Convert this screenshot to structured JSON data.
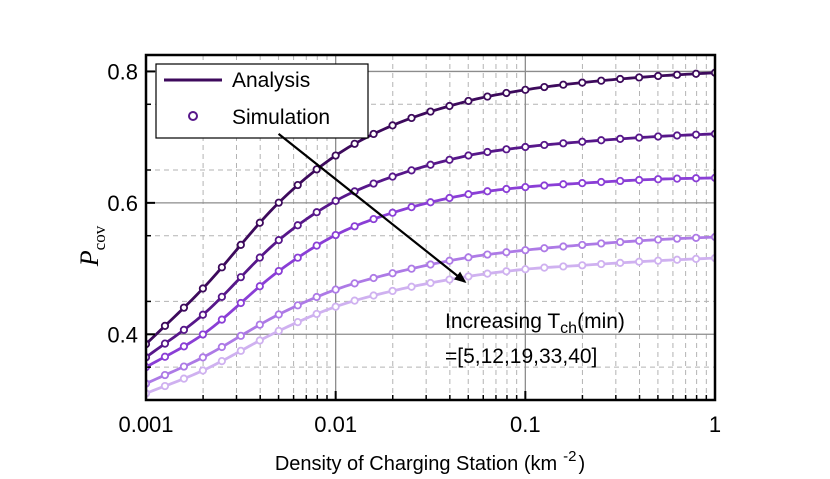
{
  "chart_data": {
    "type": "line",
    "x_scale": "log",
    "xlim": [
      0.001,
      1
    ],
    "ylim": [
      0.3,
      0.825
    ],
    "xlabel": "Density of Charging Station (km",
    "xlabel_sup": "-2",
    "xlabel_end": ")",
    "ylabel": "P",
    "ylabel_sub": "cov",
    "x_ticks": [
      {
        "value": 0.001,
        "label": "0.001"
      },
      {
        "value": 0.01,
        "label": "0.01"
      },
      {
        "value": 0.1,
        "label": "0.1"
      },
      {
        "value": 1,
        "label": "1"
      }
    ],
    "y_ticks": [
      {
        "value": 0.4,
        "label": "0.4"
      },
      {
        "value": 0.6,
        "label": "0.6"
      },
      {
        "value": 0.8,
        "label": "0.8"
      }
    ],
    "grid": true,
    "legend": {
      "placement": "top-left",
      "entries": [
        {
          "label": "Analysis",
          "marker": "line"
        },
        {
          "label": "Simulation",
          "marker": "open-circle"
        }
      ]
    },
    "annotation": {
      "line1": "Increasing T",
      "line1_sub": "ch",
      "line1_end": "(min)",
      "line2": "=[5,12,19,33,40]",
      "arrow_from": [
        0.005,
        0.705
      ],
      "arrow_to": [
        0.048,
        0.48
      ]
    },
    "series": [
      {
        "color": "#3d0a5c",
        "x": [
          0.001,
          0.002,
          0.005,
          0.01,
          0.02,
          0.05,
          0.1,
          0.2,
          0.5,
          1
        ],
        "y": [
          0.385,
          0.47,
          0.6,
          0.672,
          0.718,
          0.755,
          0.772,
          0.783,
          0.793,
          0.798
        ]
      },
      {
        "color": "#57178a",
        "x": [
          0.001,
          0.002,
          0.005,
          0.01,
          0.02,
          0.05,
          0.1,
          0.2,
          0.5,
          1
        ],
        "y": [
          0.365,
          0.43,
          0.543,
          0.603,
          0.64,
          0.672,
          0.685,
          0.693,
          0.701,
          0.705
        ]
      },
      {
        "color": "#8a3ed6",
        "x": [
          0.001,
          0.002,
          0.005,
          0.01,
          0.02,
          0.05,
          0.1,
          0.2,
          0.5,
          1
        ],
        "y": [
          0.35,
          0.4,
          0.496,
          0.551,
          0.585,
          0.613,
          0.624,
          0.63,
          0.636,
          0.638
        ]
      },
      {
        "color": "#ad7ae6",
        "x": [
          0.001,
          0.002,
          0.005,
          0.01,
          0.02,
          0.05,
          0.1,
          0.2,
          0.5,
          1
        ],
        "y": [
          0.325,
          0.365,
          0.43,
          0.468,
          0.493,
          0.517,
          0.528,
          0.536,
          0.544,
          0.548
        ]
      },
      {
        "color": "#cfb1f0",
        "x": [
          0.001,
          0.002,
          0.005,
          0.01,
          0.02,
          0.05,
          0.1,
          0.2,
          0.5,
          1
        ],
        "y": [
          0.31,
          0.345,
          0.405,
          0.442,
          0.466,
          0.488,
          0.499,
          0.505,
          0.512,
          0.516
        ]
      }
    ]
  }
}
